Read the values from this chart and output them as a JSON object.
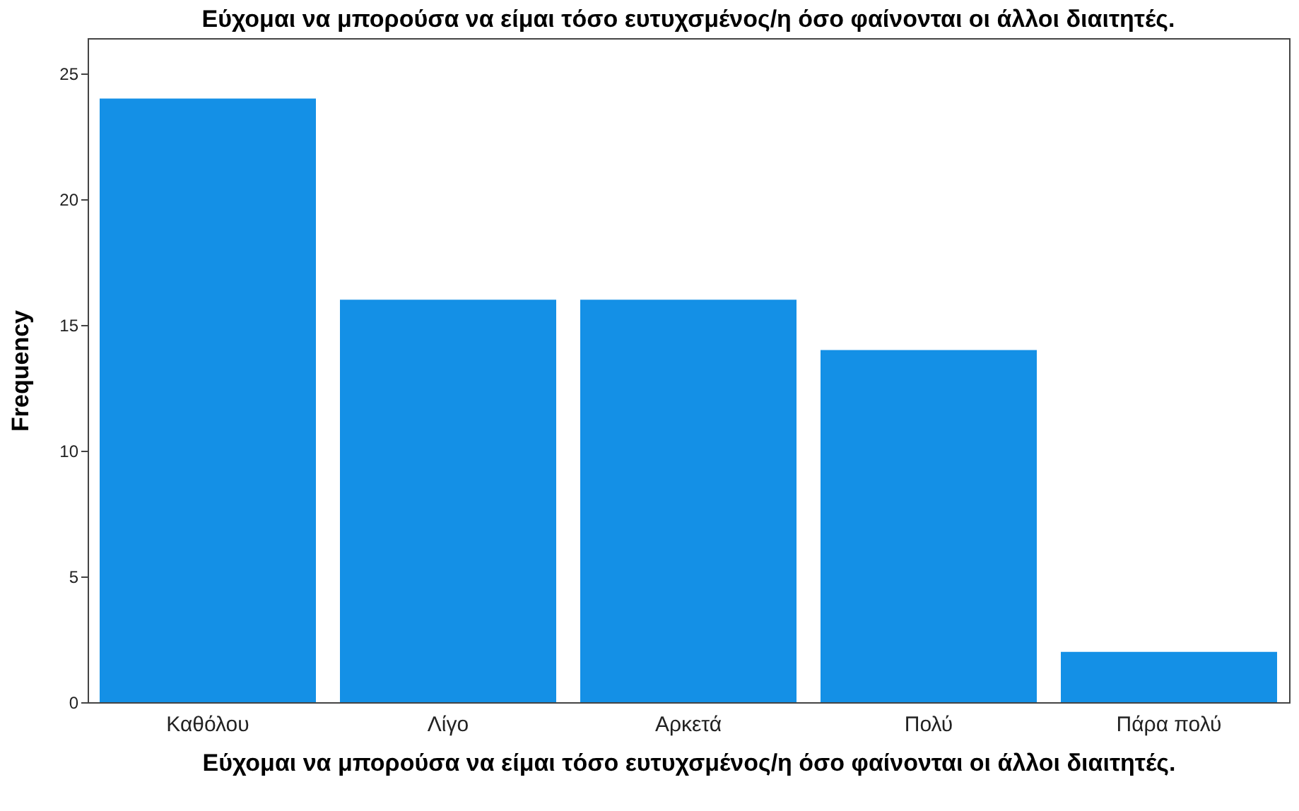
{
  "chart_data": {
    "type": "bar",
    "title": "Εύχομαι να μπορούσα να είμαι τόσο ευτυχσμένος/η όσο φαίνονται οι άλλοι διαιτητές.",
    "xlabel": "Εύχομαι να μπορούσα να είμαι τόσο ευτυχσμένος/η όσο φαίνονται οι άλλοι διαιτητές.",
    "ylabel": "Frequency",
    "categories": [
      "Καθόλου",
      "Λίγο",
      "Αρκετά",
      "Πολύ",
      "Πάρα πολύ"
    ],
    "values": [
      24,
      16,
      16,
      14,
      2
    ],
    "color": "#1490e6",
    "ylim": [
      0,
      26.4
    ],
    "yticks": [
      0,
      5,
      10,
      15,
      20,
      25
    ],
    "grid": false
  }
}
